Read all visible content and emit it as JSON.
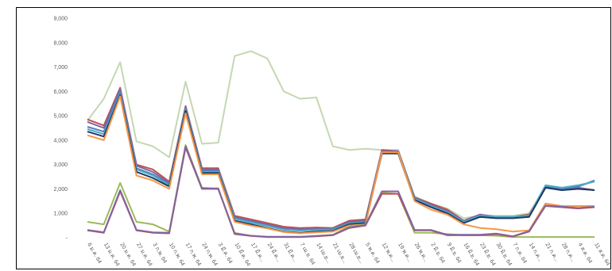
{
  "chart_data": {
    "type": "line",
    "title": "",
    "xlabel": "",
    "ylabel": "",
    "ylim": [
      0,
      9000
    ],
    "y_ticks": [
      "-",
      "1,000",
      "2,000",
      "3,000",
      "4,000",
      "5,000",
      "6,000",
      "7,000",
      "8,000",
      "9,000"
    ],
    "grid": false,
    "legend": "none",
    "categories": [
      "6 ม.ค. 64",
      "13 ม.ค. 64",
      "20 ม.ค. 64",
      "27 ม.ค. 64",
      "3 ก.พ. 64",
      "10 ก.พ. 64",
      "17 ก.พ. 64",
      "24 ก.พ. 64",
      "3 มี.ค. 64",
      "10 มี.ค. 64",
      "17 มี.ค...",
      "24 มี.ค...",
      "31 มี.ค...",
      "7 เม.ย. 64",
      "14 เม.ย...",
      "21 เม.ย...",
      "28 เม.ย...",
      "5 พ.ค. 64",
      "12 พ.ค...",
      "19 พ.ค...",
      "26 พ.ค...",
      "2 มิ.ย. 64",
      "9 มิ.ย. 64",
      "16 มิ.ย. 64",
      "23 มิ.ย. 64",
      "30 มิ.ย. 64",
      "7 ก.ค. 64",
      "14 ก.ค...",
      "21 ก.ค...",
      "28 ก.ค...",
      "4 ส.ค. 64",
      "11 ส.ค. 64"
    ],
    "series": [
      {
        "color": "#c4d7b2",
        "values": [
          4800,
          5700,
          7200,
          3950,
          3750,
          3300,
          6400,
          3850,
          3900,
          7450,
          7650,
          7350,
          6000,
          5700,
          5750,
          3750,
          3600,
          3650,
          3600,
          3600,
          1700,
          1400,
          1200,
          800,
          900,
          900,
          900,
          1000,
          2100,
          2050,
          2100,
          2300
        ]
      },
      {
        "color": "#c0504d",
        "values": [
          4850,
          4600,
          6150,
          3000,
          2800,
          2300,
          5400,
          2850,
          2850,
          900,
          750,
          600,
          450,
          400,
          420,
          400,
          700,
          750,
          3600,
          3550,
          1650,
          1400,
          1150,
          700,
          950,
          850,
          850,
          950,
          2050,
          2000,
          2050,
          1950
        ]
      },
      {
        "color": "#8064a2",
        "values": [
          4750,
          4500,
          6100,
          2950,
          2700,
          2250,
          5350,
          2800,
          2800,
          850,
          700,
          550,
          400,
          350,
          380,
          380,
          650,
          700,
          3550,
          3550,
          1650,
          1350,
          1100,
          700,
          950,
          850,
          850,
          900,
          2050,
          2000,
          2050,
          1950
        ]
      },
      {
        "color": "#4f81bd",
        "values": [
          4550,
          4350,
          6000,
          2850,
          2600,
          2200,
          5300,
          2750,
          2750,
          800,
          650,
          500,
          350,
          300,
          330,
          350,
          600,
          650,
          3500,
          3500,
          1600,
          1300,
          1050,
          650,
          900,
          850,
          850,
          900,
          2100,
          2000,
          2100,
          2350
        ]
      },
      {
        "color": "#4bacc6",
        "values": [
          4450,
          4250,
          5900,
          2800,
          2550,
          2150,
          5250,
          2700,
          2700,
          780,
          620,
          480,
          330,
          290,
          320,
          330,
          580,
          630,
          3500,
          3500,
          1600,
          1300,
          1050,
          650,
          900,
          850,
          850,
          900,
          2150,
          2050,
          2150,
          2300
        ]
      },
      {
        "color": "#1f3864",
        "values": [
          4350,
          4150,
          5850,
          2700,
          2450,
          2100,
          5200,
          2650,
          2650,
          700,
          550,
          400,
          250,
          200,
          250,
          280,
          550,
          600,
          3450,
          3450,
          1550,
          1250,
          1000,
          600,
          850,
          800,
          800,
          850,
          2050,
          1950,
          2000,
          1950
        ]
      },
      {
        "color": "#f79646",
        "values": [
          4200,
          4000,
          5800,
          2550,
          2350,
          2000,
          5100,
          2600,
          2600,
          650,
          500,
          380,
          230,
          180,
          220,
          250,
          500,
          550,
          3500,
          3500,
          1500,
          1150,
          950,
          550,
          400,
          350,
          250,
          300,
          1400,
          1300,
          1300,
          1300
        ]
      },
      {
        "color": "#9bbb59",
        "values": [
          650,
          550,
          2250,
          650,
          550,
          250,
          3800,
          2050,
          2000,
          200,
          80,
          30,
          30,
          30,
          70,
          120,
          450,
          550,
          1850,
          1800,
          200,
          200,
          150,
          100,
          100,
          80,
          30,
          30,
          30,
          30,
          30,
          30
        ]
      },
      {
        "color": "#c0504d",
        "values": [
          300,
          200,
          1900,
          300,
          200,
          180,
          3700,
          2000,
          2000,
          150,
          70,
          30,
          30,
          30,
          60,
          100,
          400,
          500,
          1800,
          1800,
          300,
          300,
          100,
          100,
          100,
          150,
          50,
          250,
          1300,
          1250,
          1200,
          1250
        ]
      },
      {
        "color": "#8064a2",
        "values": [
          320,
          220,
          1950,
          320,
          220,
          200,
          3750,
          2020,
          2020,
          170,
          80,
          40,
          40,
          40,
          70,
          110,
          420,
          520,
          1900,
          1900,
          320,
          320,
          120,
          120,
          120,
          170,
          60,
          270,
          1320,
          1270,
          1220,
          1270
        ]
      }
    ]
  }
}
